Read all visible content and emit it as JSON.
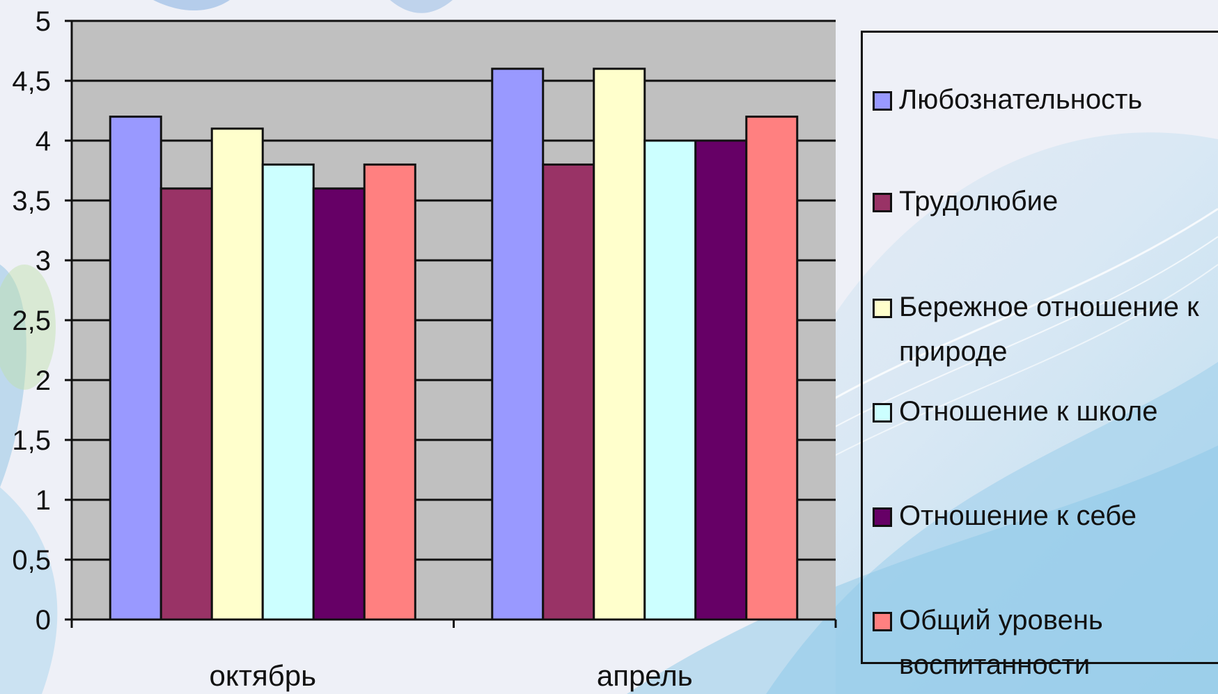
{
  "chart_data": {
    "type": "bar",
    "categories": [
      "октябрь",
      "апрель"
    ],
    "series": [
      {
        "name": "Любознательность",
        "values": [
          4.2,
          4.6
        ],
        "color": "#9999ff"
      },
      {
        "name": "Трудолюбие",
        "values": [
          3.6,
          3.8
        ],
        "color": "#993366"
      },
      {
        "name": "Бережное отношение к природе",
        "values": [
          4.1,
          4.6
        ],
        "color": "#ffffcc"
      },
      {
        "name": "Отношение к школе",
        "values": [
          3.8,
          4.0
        ],
        "color": "#ccffff"
      },
      {
        "name": "Отношение к себе",
        "values": [
          3.6,
          4.0
        ],
        "color": "#660066"
      },
      {
        "name": "Общий уровень воспитанности",
        "values": [
          3.8,
          4.2
        ],
        "color": "#ff8080"
      }
    ],
    "ylim": [
      0,
      5
    ],
    "yticks": [
      "0",
      "0,5",
      "1",
      "1,5",
      "2",
      "2,5",
      "3",
      "3,5",
      "4",
      "4,5",
      "5"
    ],
    "grid": true,
    "plot_background": "#c0c0c0",
    "legend_position": "right"
  },
  "legend": {
    "items": [
      {
        "line1": "Любознательность",
        "line2": ""
      },
      {
        "line1": "Трудолюбие",
        "line2": ""
      },
      {
        "line1": "Бережное отношение к",
        "line2": "природе"
      },
      {
        "line1": "Отношение к школе",
        "line2": ""
      },
      {
        "line1": "Отношение к себе",
        "line2": ""
      },
      {
        "line1": "Общий уровень",
        "line2": "воспитанности"
      }
    ]
  }
}
